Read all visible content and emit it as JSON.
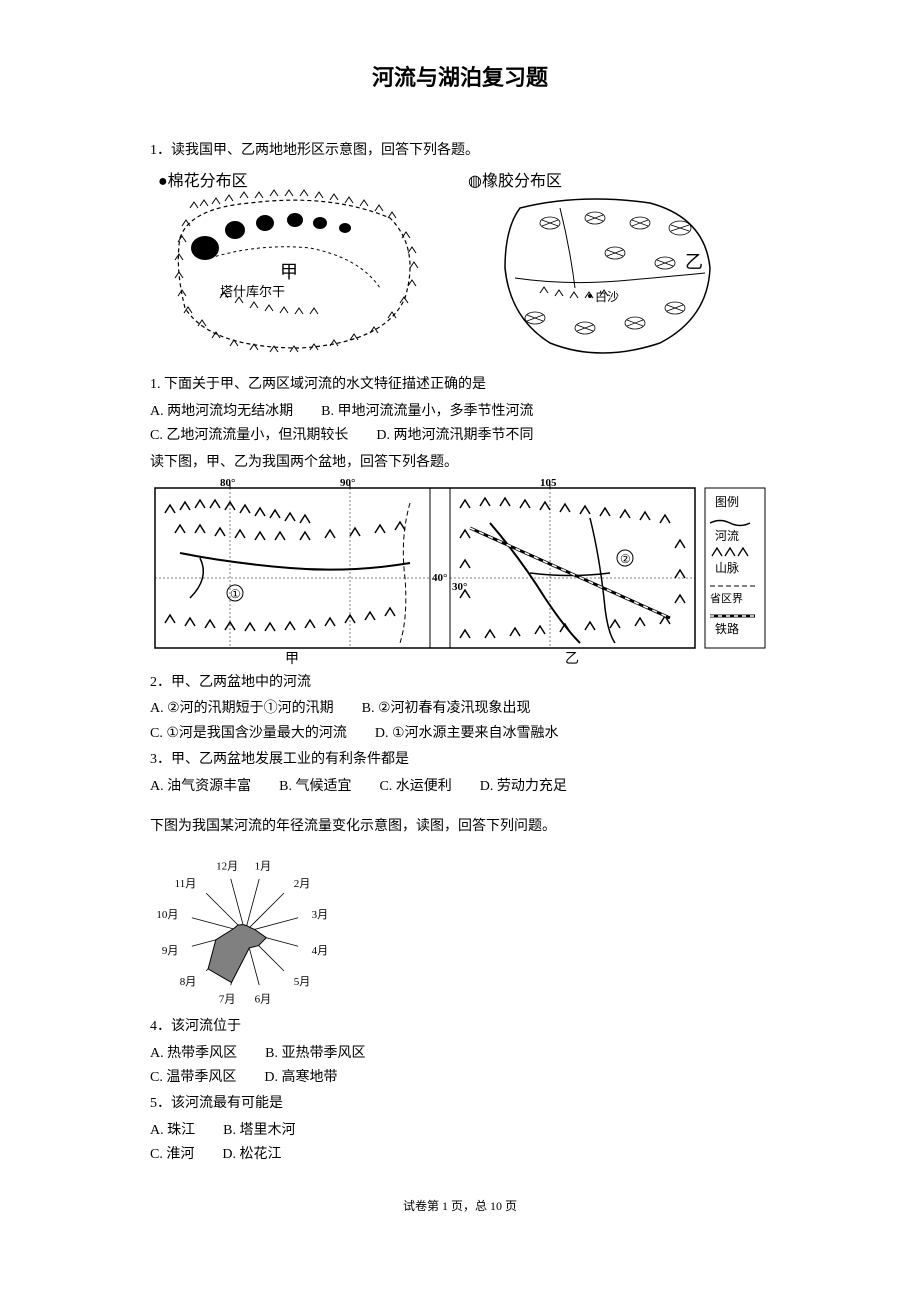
{
  "title": "河流与湖泊复习题",
  "q1": {
    "intro": "1．读我国甲、乙两地地形区示意图，回答下列各题。",
    "mapA_label": "●棉花分布区",
    "mapA_river": "塔什库尔干",
    "mapA_center": "甲",
    "mapB_label": "◍橡胶分布区",
    "mapB_city": "白沙",
    "mapB_center": "乙",
    "sub1": "1. 下面关于甲、乙两区域河流的水文特征描述正确的是",
    "sub1_opts_line1": "A. 两地河流均无结冰期　　B. 甲地河流流量小，多季节性河流",
    "sub1_opts_line2": "C. 乙地河流流量小，但汛期较长　　D. 两地河流汛期季节不同",
    "intro2": "读下图，甲、乙为我国两个盆地，回答下列各题。"
  },
  "map2": {
    "legend_title": "图例",
    "legend_river": "河流",
    "legend_mountain": "山脉",
    "legend_border": "省区界",
    "legend_rail": "铁路",
    "lon80": "80°",
    "lon90": "90°",
    "lon105": "105",
    "lat40": "40°",
    "lat30": "30°",
    "circle1": "①",
    "circle2": "②",
    "jia": "甲",
    "yi": "乙"
  },
  "q2": {
    "stem": "2．甲、乙两盆地中的河流",
    "line1": "A. ②河的汛期短于①河的汛期　　B. ②河初春有凌汛现象出现",
    "line2": "C. ①河是我国含沙量最大的河流　　D. ①河水源主要来自冰雪融水"
  },
  "q3": {
    "stem": "3．甲、乙两盆地发展工业的有利条件都是",
    "line1": "A. 油气资源丰富　　B. 气候适宜　　C. 水运便利　　D. 劳动力充足"
  },
  "radar": {
    "intro": "下图为我国某河流的年径流量变化示意图，读图，回答下列问题。",
    "months": [
      "1月",
      "2月",
      "3月",
      "4月",
      "5月",
      "6月",
      "7月",
      "8月",
      "9月",
      "10月",
      "11月",
      "12月"
    ],
    "values": [
      0.12,
      0.12,
      0.18,
      0.4,
      0.35,
      0.3,
      0.95,
      0.95,
      0.55,
      0.22,
      0.18,
      0.14
    ],
    "fill_color": "#808080",
    "line_color": "#000000"
  },
  "q4": {
    "stem": "4．该河流位于",
    "line1": "A. 热带季风区　　B. 亚热带季风区",
    "line2": "C. 温带季风区　　D. 高寒地带"
  },
  "q5": {
    "stem": "5．该河流最有可能是",
    "line1": "A. 珠江　　B. 塔里木河",
    "line2": "C. 淮河　　D. 松花江"
  },
  "footer": "试卷第 1 页，总 10 页"
}
